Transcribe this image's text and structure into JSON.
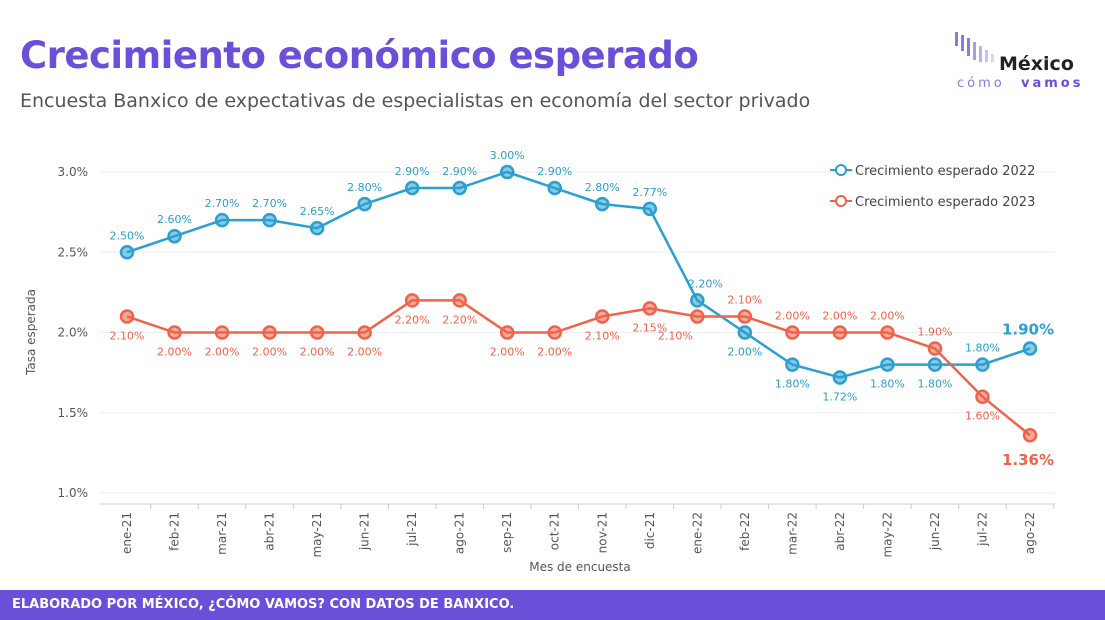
{
  "title": "Crecimiento económico esperado",
  "subtitle": "Encuesta Banxico de expectativas de especialistas en economía del sector privado",
  "logo": {
    "line1": "México",
    "line2_light": "cómo",
    "line2_bold": "vamos",
    "color": "#6b4fd8"
  },
  "footer": "ELABORADO POR MÉXICO, ¿CÓMO VAMOS? CON DATOS DE BANXICO.",
  "chart_data": {
    "type": "line",
    "xlabel": "Mes de encuesta",
    "ylabel": "Tasa esperada",
    "ylim": [
      1.0,
      3.0
    ],
    "yticks": [
      "1.0%",
      "1.5%",
      "2.0%",
      "2.5%",
      "3.0%"
    ],
    "grid": true,
    "legend_position": "top-right",
    "categories": [
      "ene-21",
      "feb-21",
      "mar-21",
      "abr-21",
      "may-21",
      "jun-21",
      "jul-21",
      "ago-21",
      "sep-21",
      "oct-21",
      "nov-21",
      "dic-21",
      "ene-22",
      "feb-22",
      "mar-22",
      "abr-22",
      "may-22",
      "jun-22",
      "jul-22",
      "ago-22"
    ],
    "series": [
      {
        "name": "Crecimiento esperado 2022",
        "color": "#2a9fd0",
        "values": [
          2.5,
          2.6,
          2.7,
          2.7,
          2.65,
          2.8,
          2.9,
          2.9,
          3.0,
          2.9,
          2.8,
          2.77,
          2.2,
          2.0,
          1.8,
          1.72,
          1.8,
          1.8,
          1.8,
          1.9
        ],
        "labels": [
          "2.50%",
          "2.60%",
          "2.70%",
          "2.70%",
          "2.65%",
          "2.80%",
          "2.90%",
          "2.90%",
          "3.00%",
          "2.90%",
          "2.80%",
          "2.77%",
          "2.20%",
          "2.00%",
          "1.80%",
          "1.72%",
          "1.80%",
          "1.80%",
          "1.80%",
          "1.90%"
        ]
      },
      {
        "name": "Crecimiento esperado 2023",
        "color": "#f0634a",
        "values": [
          2.1,
          2.0,
          2.0,
          2.0,
          2.0,
          2.0,
          2.2,
          2.2,
          2.0,
          2.0,
          2.1,
          2.15,
          2.1,
          2.1,
          2.0,
          2.0,
          2.0,
          1.9,
          1.6,
          1.36
        ],
        "labels": [
          "2.10%",
          "2.00%",
          "2.00%",
          "2.00%",
          "2.00%",
          "2.00%",
          "2.20%",
          "2.20%",
          "2.00%",
          "2.00%",
          "2.10%",
          "2.15%",
          "2.10%",
          "2.10%",
          "2.00%",
          "2.00%",
          "2.00%",
          "1.90%",
          "1.60%",
          "1.36%"
        ]
      }
    ]
  }
}
